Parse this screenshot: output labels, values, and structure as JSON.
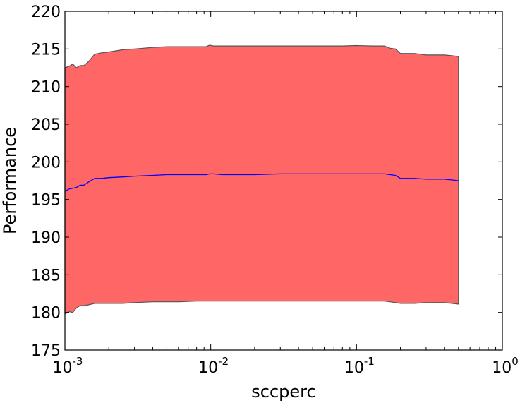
{
  "chart_data": {
    "type": "area",
    "title": "",
    "xlabel": "sccperc",
    "ylabel": "Performance",
    "x_scale": "log",
    "xlim": [
      0.001,
      1
    ],
    "ylim": [
      175,
      220
    ],
    "x_ticks": [
      {
        "value": 0.001,
        "base": "10",
        "exp": "-3"
      },
      {
        "value": 0.01,
        "base": "10",
        "exp": "-2"
      },
      {
        "value": 0.1,
        "base": "10",
        "exp": "-1"
      },
      {
        "value": 1,
        "base": "10",
        "exp": "0"
      }
    ],
    "y_ticks": [
      175,
      180,
      185,
      190,
      195,
      200,
      205,
      210,
      215,
      220
    ],
    "grid": false,
    "colors": {
      "band_fill": "#ff6666",
      "band_edge": "#555555",
      "mean_line": "#0000ff"
    },
    "x": [
      0.001,
      0.00107,
      0.00113,
      0.0012,
      0.00127,
      0.00135,
      0.00145,
      0.0016,
      0.0018,
      0.002,
      0.0025,
      0.003,
      0.004,
      0.005,
      0.006,
      0.008,
      0.0093,
      0.0098,
      0.0105,
      0.012,
      0.015,
      0.02,
      0.03,
      0.05,
      0.08,
      0.1,
      0.13,
      0.155,
      0.17,
      0.185,
      0.2,
      0.25,
      0.3,
      0.35,
      0.4,
      0.45,
      0.5
    ],
    "mean": [
      196.1,
      196.4,
      196.5,
      196.6,
      196.9,
      196.9,
      197.3,
      197.8,
      197.8,
      197.9,
      198.0,
      198.1,
      198.2,
      198.3,
      198.3,
      198.3,
      198.3,
      198.4,
      198.4,
      198.3,
      198.3,
      198.3,
      198.4,
      198.4,
      198.4,
      198.4,
      198.4,
      198.4,
      198.3,
      198.2,
      197.8,
      197.8,
      197.7,
      197.7,
      197.7,
      197.6,
      197.5
    ],
    "upper": [
      212.5,
      212.7,
      213.0,
      212.5,
      212.8,
      212.8,
      213.3,
      214.3,
      214.5,
      214.6,
      214.9,
      215.0,
      215.2,
      215.3,
      215.3,
      215.3,
      215.3,
      215.5,
      215.4,
      215.4,
      215.4,
      215.4,
      215.4,
      215.4,
      215.4,
      215.45,
      215.4,
      215.4,
      215.1,
      215.0,
      214.4,
      214.4,
      214.2,
      214.2,
      214.2,
      214.1,
      214.0
    ],
    "lower": [
      179.8,
      180.1,
      180.0,
      180.6,
      180.9,
      180.9,
      181.0,
      181.2,
      181.2,
      181.2,
      181.2,
      181.3,
      181.4,
      181.4,
      181.4,
      181.5,
      181.5,
      181.5,
      181.5,
      181.5,
      181.5,
      181.5,
      181.5,
      181.5,
      181.5,
      181.5,
      181.5,
      181.5,
      181.4,
      181.3,
      181.2,
      181.2,
      181.3,
      181.3,
      181.3,
      181.2,
      181.1
    ]
  }
}
